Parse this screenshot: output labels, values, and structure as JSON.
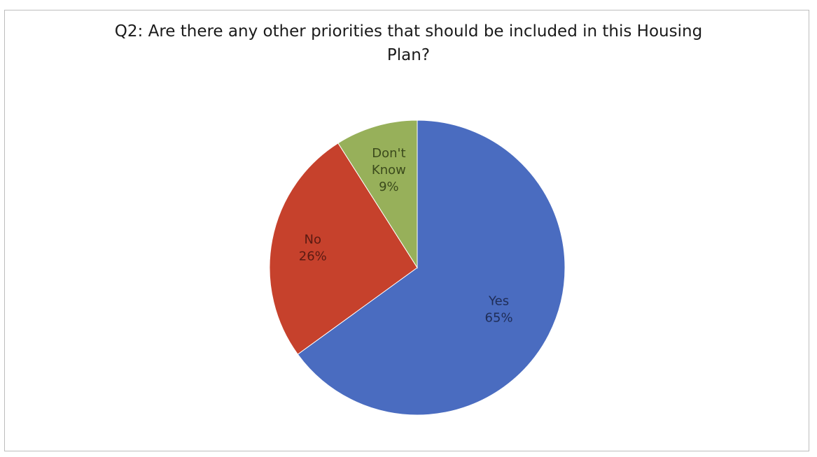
{
  "chart_data": {
    "type": "pie",
    "title": "Q2: Are there any other priorities that should be included in this Housing Plan?",
    "categories": [
      "Yes",
      "No",
      "Don't Know"
    ],
    "values": [
      65,
      26,
      9
    ],
    "labels": [
      [
        "Yes",
        "65%"
      ],
      [
        "No",
        "26%"
      ],
      [
        "Don't",
        "Know",
        "9%"
      ]
    ],
    "colors": [
      "#4a6cc0",
      "#c6412c",
      "#97b05a"
    ],
    "label_colors": [
      "#1f2d57",
      "#5a1a12",
      "#3b4a1c"
    ],
    "start": "12 o'clock",
    "direction": "clockwise",
    "legend": "none"
  }
}
